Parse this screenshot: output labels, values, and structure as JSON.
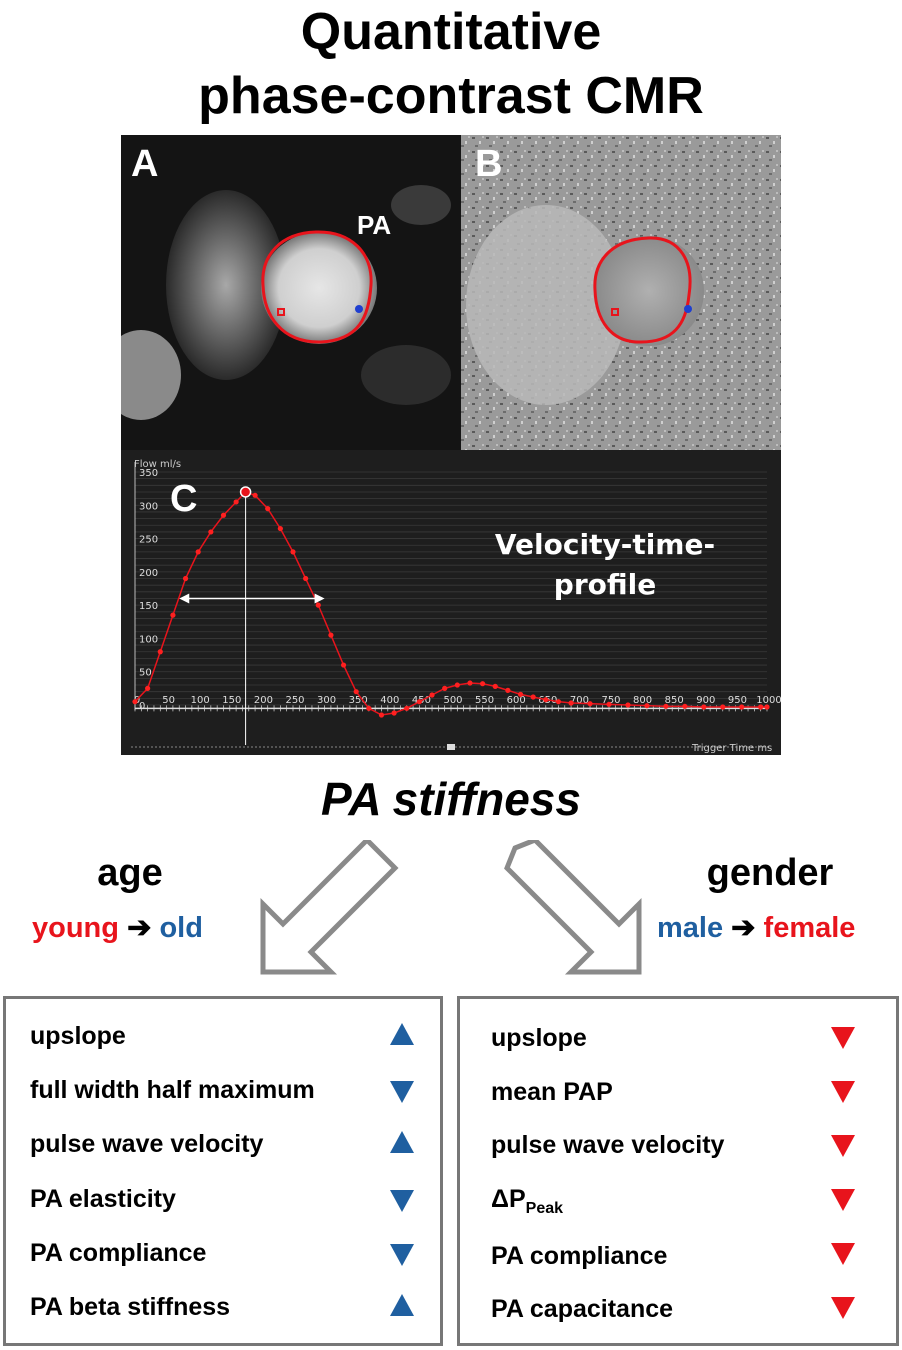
{
  "title_line1": "Quantitative",
  "title_line2": "phase-contrast CMR",
  "panel_a_letter": "A",
  "panel_b_letter": "B",
  "panel_c_letter": "C",
  "pa_label": "PA",
  "chart_title_line1": "Velocity-time-",
  "chart_title_line2": "profile",
  "chart_data": {
    "type": "line",
    "ylabel": "Flow ml/s",
    "xlabel": "Trigger Time ms",
    "xlim": [
      0,
      1000
    ],
    "ylim": [
      -20,
      350
    ],
    "x_ticks": [
      0,
      50,
      100,
      150,
      200,
      250,
      300,
      350,
      400,
      450,
      500,
      550,
      600,
      650,
      700,
      750,
      800,
      850,
      900,
      950,
      1000
    ],
    "y_ticks": [
      0,
      50,
      100,
      150,
      200,
      250,
      300,
      350
    ],
    "series": [
      {
        "x": [
          0,
          20,
          40,
          60,
          80,
          100,
          120,
          140,
          160,
          175,
          190,
          210,
          230,
          250,
          270,
          290,
          310,
          330,
          350,
          370,
          390,
          410,
          430,
          450,
          470,
          490,
          510,
          530,
          550,
          570,
          590,
          610,
          630,
          650,
          670,
          690,
          720,
          750,
          780,
          810,
          840,
          870,
          900,
          930,
          960,
          990,
          1000
        ],
        "y": [
          5,
          25,
          80,
          135,
          190,
          230,
          260,
          285,
          305,
          320,
          315,
          295,
          265,
          230,
          190,
          150,
          105,
          60,
          20,
          -5,
          -15,
          -12,
          -5,
          5,
          15,
          25,
          30,
          33,
          32,
          28,
          22,
          16,
          12,
          8,
          5,
          3,
          2,
          1,
          0,
          -1,
          -2,
          -2,
          -3,
          -3,
          -3,
          -3,
          -3
        ]
      }
    ],
    "peak": {
      "x": 175,
      "y": 320
    }
  },
  "stiffness_label": "PA stiffness",
  "age": {
    "label": "age",
    "from": "young",
    "to": "old",
    "arrow": "➔",
    "items": [
      {
        "label": "upslope",
        "dir": "up"
      },
      {
        "label": "full width half maximum",
        "dir": "down"
      },
      {
        "label": "pulse wave velocity",
        "dir": "up"
      },
      {
        "label": "PA elasticity",
        "dir": "down"
      },
      {
        "label": "PA compliance",
        "dir": "down"
      },
      {
        "label": "PA beta stiffness",
        "dir": "up"
      }
    ]
  },
  "gender": {
    "label": "gender",
    "from": "male",
    "to": "female",
    "arrow": "➔",
    "items": [
      {
        "label": "upslope",
        "dir": "down"
      },
      {
        "label": "mean PAP",
        "dir": "down"
      },
      {
        "label": "pulse wave velocity",
        "dir": "down"
      },
      {
        "label": "ΔP",
        "sub": "Peak",
        "dir": "down"
      },
      {
        "label": "PA compliance",
        "dir": "down"
      },
      {
        "label": "PA capacitance",
        "dir": "down"
      }
    ]
  },
  "colors": {
    "red": "#e8141c",
    "blue": "#1f5fa0",
    "box_border": "#777777"
  }
}
